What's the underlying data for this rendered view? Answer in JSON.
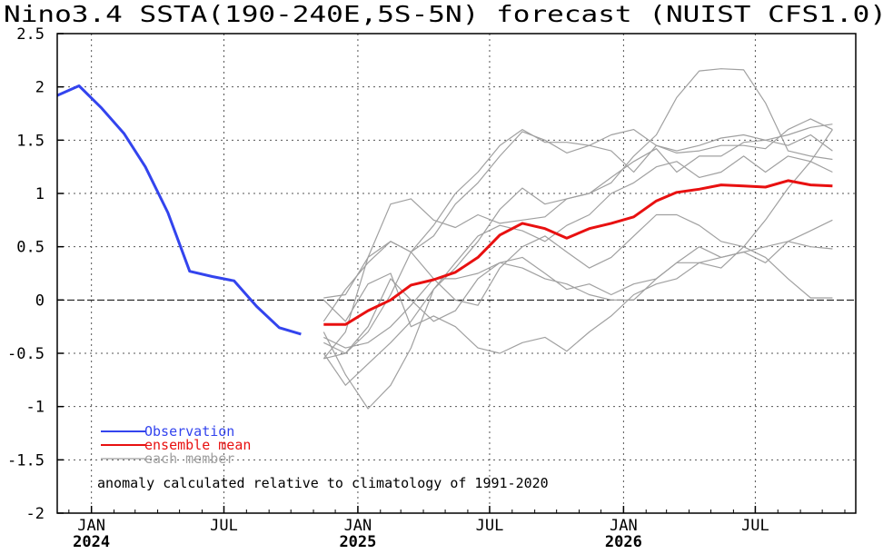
{
  "chart_data": {
    "type": "line",
    "title": "Nino3.4 SSTA(190-240E,5S-5N) forecast (NUIST CFS1.0)",
    "ylim": [
      -2,
      2.5
    ],
    "yticks": [
      {
        "value": 2.5,
        "label": "2.5"
      },
      {
        "value": 2,
        "label": "2"
      },
      {
        "value": 1.5,
        "label": "1.5"
      },
      {
        "value": 1,
        "label": "1"
      },
      {
        "value": 0.5,
        "label": "0.5"
      },
      {
        "value": 0,
        "label": "0"
      },
      {
        "value": -0.5,
        "label": "-0.5"
      },
      {
        "value": -1,
        "label": "-1"
      },
      {
        "value": -1.5,
        "label": "-1.5"
      },
      {
        "value": -2,
        "label": "-2"
      }
    ],
    "xlim": [
      "2023-11-15",
      "2026-11-16"
    ],
    "xticks": [
      {
        "date": "2024-01-01",
        "label": "JAN",
        "year": "2024"
      },
      {
        "date": "2024-07-01",
        "label": "JUL",
        "year": ""
      },
      {
        "date": "2025-01-01",
        "label": "JAN",
        "year": "2025"
      },
      {
        "date": "2025-07-01",
        "label": "JUL",
        "year": ""
      },
      {
        "date": "2026-01-01",
        "label": "JAN",
        "year": "2026"
      },
      {
        "date": "2026-07-01",
        "label": "JUL",
        "year": ""
      }
    ],
    "grid": true,
    "zero_line": true,
    "legend_position": "bottom-left",
    "legend": [
      {
        "label": "Observation",
        "color": "#3344ee"
      },
      {
        "label": "ensemble mean",
        "color": "#e81010"
      },
      {
        "label": "each member",
        "color": "#a0a0a0"
      }
    ],
    "annotation": "anomaly calculated relative to climatology of 1991-2020",
    "observation": {
      "name": "Observation",
      "color": "#3344ee",
      "x": [
        "2023-11-15",
        "2023-12-15",
        "2024-01-15",
        "2024-02-15",
        "2024-03-15",
        "2024-04-15",
        "2024-05-15",
        "2024-06-15",
        "2024-07-15",
        "2024-08-15",
        "2024-09-15",
        "2024-10-15"
      ],
      "y": [
        1.92,
        2.01,
        1.8,
        1.56,
        1.25,
        0.82,
        0.27,
        0.22,
        0.18,
        -0.06,
        -0.26,
        -0.32
      ]
    },
    "ensemble_mean": {
      "name": "ensemble mean",
      "color": "#e81010",
      "x": [
        "2024-11-15",
        "2024-12-15",
        "2025-01-15",
        "2025-02-15",
        "2025-03-15",
        "2025-04-15",
        "2025-05-15",
        "2025-06-15",
        "2025-07-15",
        "2025-08-15",
        "2025-09-15",
        "2025-10-15",
        "2025-11-15",
        "2025-12-15",
        "2026-01-15",
        "2026-02-15",
        "2026-03-15",
        "2026-04-15",
        "2026-05-15",
        "2026-06-15",
        "2026-07-15",
        "2026-08-15",
        "2026-09-15",
        "2026-10-15"
      ],
      "y": [
        -0.23,
        -0.23,
        -0.1,
        0.0,
        0.14,
        0.19,
        0.26,
        0.4,
        0.61,
        0.72,
        0.67,
        0.58,
        0.67,
        0.72,
        0.78,
        0.93,
        1.01,
        1.04,
        1.08,
        1.07,
        1.06,
        1.12,
        1.08,
        1.07
      ]
    },
    "member_color": "#a0a0a0",
    "members_x": [
      "2024-11-15",
      "2024-12-15",
      "2025-01-15",
      "2025-02-15",
      "2025-03-15",
      "2025-04-15",
      "2025-05-15",
      "2025-06-15",
      "2025-07-15",
      "2025-08-15",
      "2025-09-15",
      "2025-10-15",
      "2025-11-15",
      "2025-12-15",
      "2026-01-15",
      "2026-02-15",
      "2026-03-15",
      "2026-04-15",
      "2026-05-15",
      "2026-06-15",
      "2026-07-15",
      "2026-08-15",
      "2026-09-15",
      "2026-10-15"
    ],
    "members": [
      [
        -0.55,
        -0.3,
        0.4,
        0.9,
        0.95,
        0.75,
        0.68,
        0.8,
        0.72,
        0.75,
        0.78,
        0.95,
        1.0,
        1.1,
        1.35,
        1.55,
        1.9,
        2.15,
        2.17,
        2.16,
        1.85,
        1.4,
        1.35,
        1.32
      ],
      [
        0.02,
        0.05,
        0.4,
        0.55,
        0.45,
        0.6,
        0.9,
        1.1,
        1.35,
        1.58,
        1.5,
        1.38,
        1.45,
        1.55,
        1.6,
        1.45,
        1.4,
        1.45,
        1.52,
        1.55,
        1.5,
        1.45,
        1.55,
        1.4
      ],
      [
        -0.4,
        -0.5,
        -0.3,
        0.05,
        0.45,
        0.7,
        1.0,
        1.2,
        1.45,
        1.6,
        1.48,
        1.48,
        1.45,
        1.4,
        1.2,
        1.45,
        1.38,
        1.4,
        1.45,
        1.45,
        1.42,
        1.6,
        1.7,
        1.6
      ],
      [
        -0.3,
        -0.7,
        -1.02,
        -0.8,
        -0.45,
        0.1,
        0.3,
        0.55,
        0.85,
        1.05,
        0.9,
        0.95,
        1.0,
        1.15,
        1.3,
        1.42,
        1.2,
        1.35,
        1.35,
        1.48,
        1.5,
        1.55,
        1.62,
        1.65
      ],
      [
        -0.5,
        -0.8,
        -0.6,
        -0.4,
        -0.2,
        0.1,
        0.35,
        0.6,
        0.7,
        0.65,
        0.55,
        0.7,
        0.8,
        1.0,
        1.1,
        1.25,
        1.3,
        1.15,
        1.2,
        1.35,
        1.2,
        1.35,
        1.3,
        1.2
      ],
      [
        0.0,
        -0.2,
        0.15,
        0.25,
        -0.25,
        -0.15,
        -0.25,
        -0.45,
        -0.5,
        -0.4,
        -0.35,
        -0.48,
        -0.3,
        -0.15,
        0.05,
        0.15,
        0.2,
        0.35,
        0.3,
        0.5,
        0.75,
        1.05,
        1.3,
        1.6
      ],
      [
        -0.55,
        -0.5,
        -0.25,
        0.2,
        0.0,
        -0.2,
        -0.1,
        0.2,
        0.35,
        0.4,
        0.25,
        0.1,
        0.15,
        0.05,
        0.15,
        0.2,
        0.35,
        0.5,
        0.4,
        0.45,
        0.5,
        0.55,
        0.65,
        0.75
      ],
      [
        -0.2,
        0.1,
        0.35,
        0.55,
        0.45,
        0.2,
        0.0,
        -0.05,
        0.3,
        0.5,
        0.6,
        0.45,
        0.3,
        0.4,
        0.6,
        0.8,
        0.8,
        0.7,
        0.55,
        0.5,
        0.4,
        0.2,
        0.02,
        0.02
      ],
      [
        -0.35,
        -0.45,
        -0.4,
        -0.25,
        -0.05,
        0.2,
        0.2,
        0.25,
        0.35,
        0.3,
        0.2,
        0.15,
        0.05,
        0.0,
        0.0,
        0.2,
        0.35,
        0.35,
        0.4,
        0.45,
        0.35,
        0.55,
        0.5,
        0.48
      ]
    ]
  }
}
